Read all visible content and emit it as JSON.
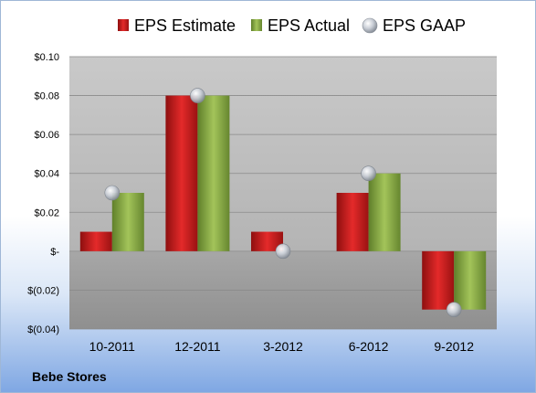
{
  "chart_data": {
    "type": "bar",
    "categories": [
      "10-2011",
      "12-2011",
      "3-2012",
      "6-2012",
      "9-2012"
    ],
    "series": [
      {
        "name": "EPS Estimate",
        "values": [
          0.01,
          0.08,
          0.01,
          0.03,
          -0.03
        ]
      },
      {
        "name": "EPS Actual",
        "values": [
          0.03,
          0.08,
          0.0,
          0.04,
          -0.03
        ]
      },
      {
        "name": "EPS GAAP",
        "type": "scatter",
        "values": [
          0.03,
          0.08,
          0.0,
          0.04,
          -0.03
        ]
      }
    ],
    "yticks": [
      0.1,
      0.08,
      0.06,
      0.04,
      0.02,
      0.0,
      -0.02,
      -0.04
    ],
    "ytick_labels": [
      "$0.10",
      "$0.08",
      "$0.06",
      "$0.04",
      "$0.02",
      "$-",
      "$(0.02)",
      "$(0.04)"
    ],
    "ylim": [
      -0.04,
      0.1
    ],
    "legend_position": "top",
    "grid": true,
    "colors": {
      "estimate": "#cc1f1f",
      "actual": "#8db04a",
      "gaap": "#b8bec6"
    }
  },
  "footer": {
    "company": "Bebe Stores"
  }
}
